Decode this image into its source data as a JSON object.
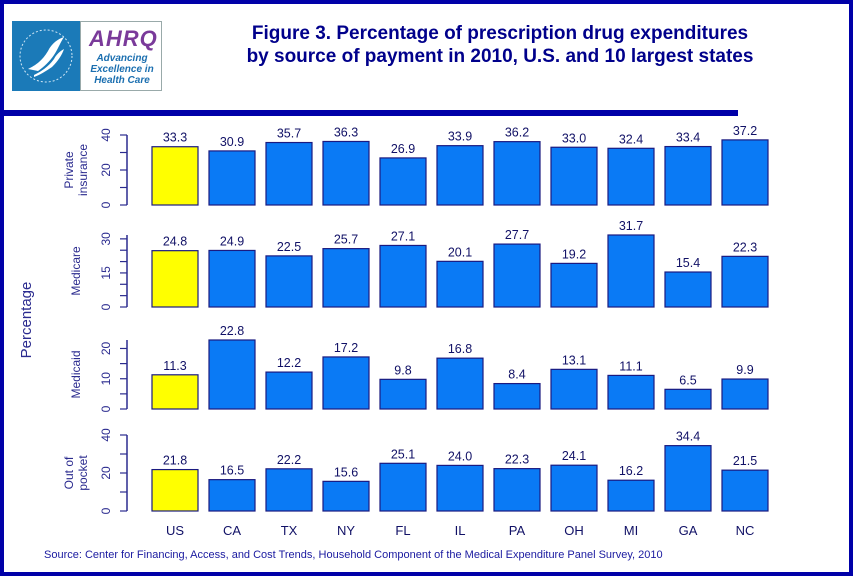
{
  "header": {
    "logo_left": "HHS seal",
    "logo_brand": "AHRQ",
    "logo_tagline": [
      "Advancing",
      "Excellence in",
      "Health Care"
    ],
    "title_lines": [
      "Figure 3. Percentage of prescription drug expenditures",
      "by source of payment in 2010, U.S. and 10 largest states"
    ]
  },
  "source": "Source: Center for Financing, Access, and Cost Trends, Household Component of the Medical Expenditure Panel Survey,  2010",
  "colors": {
    "background_border": "#0000a8",
    "us_bar": "#ffff00",
    "state_bar": "#0a7af5",
    "bar_outline": "#1a1a80",
    "text": "#00008b"
  },
  "chart_data": {
    "type": "bar",
    "title": "Figure 3. Percentage of prescription drug expenditures by source of payment in 2010, U.S. and 10 largest states",
    "ylabel": "Percentage",
    "xlabel": "",
    "categories": [
      "US",
      "CA",
      "TX",
      "NY",
      "FL",
      "IL",
      "PA",
      "OH",
      "MI",
      "GA",
      "NC"
    ],
    "highlight_category": "US",
    "grid": false,
    "legend": "none",
    "panels": [
      {
        "name": "Private insurance",
        "label_lines": [
          "Private",
          "insurance"
        ],
        "ylim": [
          0,
          40
        ],
        "yticks": [
          0,
          20,
          40
        ],
        "minor_step": 10,
        "values": [
          33.3,
          30.9,
          35.7,
          36.3,
          26.9,
          33.9,
          36.2,
          33.0,
          32.4,
          33.4,
          37.2
        ],
        "labels": [
          "33.3",
          "30.9",
          "35.7",
          "36.3",
          "26.9",
          "33.9",
          "36.2",
          "33.0",
          "32.4",
          "33.4",
          "37.2"
        ]
      },
      {
        "name": "Medicare",
        "label_lines": [
          "Medicare"
        ],
        "ylim": [
          0,
          31.7
        ],
        "yticks": [
          0,
          15,
          30
        ],
        "minor_step": 5,
        "values": [
          24.8,
          24.9,
          22.5,
          25.7,
          27.1,
          20.1,
          27.7,
          19.2,
          31.7,
          15.4,
          22.3
        ],
        "labels": [
          "24.8",
          "24.9",
          "22.5",
          "25.7",
          "27.1",
          "20.1",
          "27.7",
          "19.2",
          "31.7",
          "15.4",
          "22.3"
        ]
      },
      {
        "name": "Medicaid",
        "label_lines": [
          "Medicaid"
        ],
        "ylim": [
          0,
          22.8
        ],
        "yticks": [
          0,
          10,
          20
        ],
        "minor_step": 5,
        "values": [
          11.3,
          22.8,
          12.2,
          17.2,
          9.8,
          16.8,
          8.4,
          13.1,
          11.1,
          6.5,
          9.9
        ],
        "labels": [
          "11.3",
          "22.8",
          "12.2",
          "17.2",
          "9.8",
          "16.8",
          "8.4",
          "13.1",
          "11.1",
          "6.5",
          "9.9"
        ]
      },
      {
        "name": "Out of pocket",
        "label_lines": [
          "Out of",
          "pocket"
        ],
        "ylim": [
          0,
          40
        ],
        "yticks": [
          0,
          20,
          40
        ],
        "minor_step": 10,
        "values": [
          21.8,
          16.5,
          22.2,
          15.6,
          25.1,
          24.0,
          22.3,
          24.1,
          16.2,
          34.4,
          21.5
        ],
        "labels": [
          "21.8",
          "16.5",
          "22.2",
          "15.6",
          "25.1",
          "24.0",
          "22.3",
          "24.1",
          "16.2",
          "34.4",
          "21.5"
        ]
      }
    ]
  }
}
